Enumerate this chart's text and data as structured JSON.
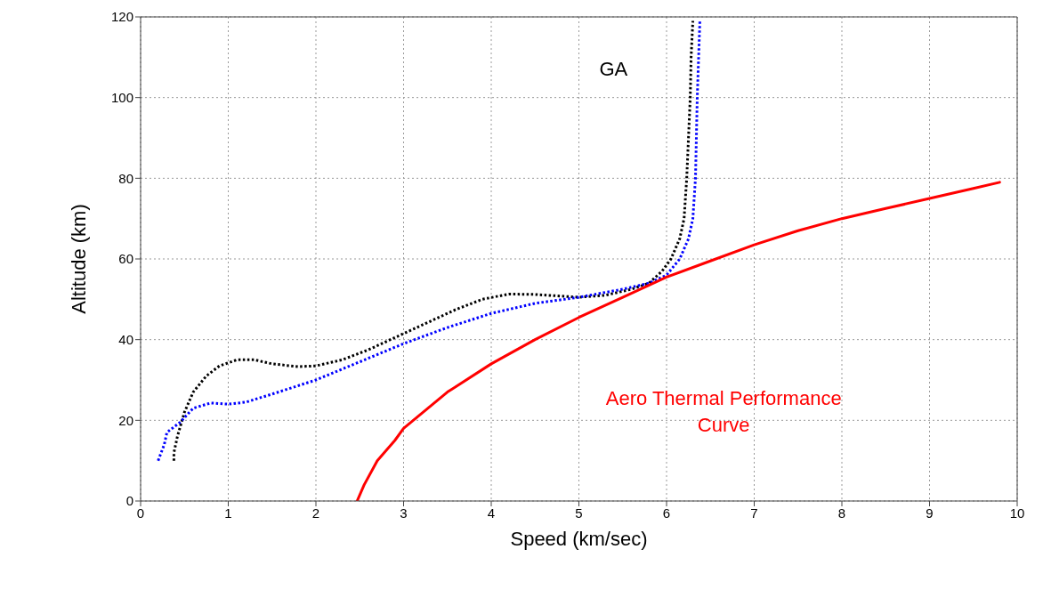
{
  "chart_data": {
    "type": "line",
    "xlabel": "Speed (km/sec)",
    "ylabel": "Altitude (km)",
    "xlim": [
      0,
      10
    ],
    "xticks": [
      0,
      1,
      2,
      3,
      4,
      5,
      6,
      7,
      8,
      9,
      10
    ],
    "ylim": [
      0,
      120
    ],
    "yticks": [
      0,
      20,
      40,
      60,
      80,
      100,
      120
    ],
    "grid": true,
    "legend": false,
    "marker": "none",
    "series": [
      {
        "name": "GA",
        "color": "#000000",
        "line_style": "dotted",
        "x": [
          0.38,
          0.38,
          0.42,
          0.5,
          0.6,
          0.75,
          0.9,
          1.1,
          1.3,
          1.5,
          1.8,
          2.0,
          2.3,
          2.6,
          3.0,
          3.3,
          3.6,
          3.9,
          4.2,
          4.5,
          5.0,
          5.3,
          5.6,
          5.8,
          5.95,
          6.05,
          6.15,
          6.2,
          6.23,
          6.25,
          6.27,
          6.28,
          6.3
        ],
        "values": [
          10,
          12,
          16,
          22,
          27,
          31,
          33.5,
          35,
          35,
          34,
          33.3,
          33.5,
          35,
          37.5,
          41.5,
          44.5,
          47.5,
          50,
          51.3,
          51.2,
          50.5,
          51,
          52.5,
          54,
          57,
          60,
          65,
          70,
          80,
          90,
          100,
          110,
          119
        ]
      },
      {
        "color": "#0000ff",
        "line_style": "dotted",
        "x": [
          0.2,
          0.27,
          0.3,
          0.45,
          0.6,
          0.8,
          1.0,
          1.2,
          1.5,
          2.0,
          2.5,
          3.0,
          3.5,
          4.0,
          4.5,
          5.0,
          5.5,
          5.8,
          6.0,
          6.15,
          6.25,
          6.3,
          6.33,
          6.35,
          6.38
        ],
        "values": [
          10,
          14,
          17,
          19.5,
          23,
          24.3,
          24,
          24.5,
          26.5,
          30,
          34.5,
          39,
          43,
          46.5,
          49,
          50.5,
          52.5,
          54,
          56,
          60,
          65,
          70,
          80,
          100,
          119
        ]
      },
      {
        "name": "Aero Thermal Performance Curve",
        "color": "#ff0000",
        "line_style": "solid",
        "x": [
          2.47,
          2.55,
          2.7,
          2.9,
          3.0,
          3.5,
          4.0,
          4.5,
          5.0,
          5.5,
          6.0,
          6.5,
          7.0,
          7.5,
          8.0,
          8.5,
          9.0,
          9.5,
          9.8
        ],
        "values": [
          0,
          4,
          10,
          15,
          18,
          27,
          34,
          40,
          45.5,
          50.5,
          55.5,
          59.5,
          63.5,
          67,
          70,
          72.5,
          75,
          77.5,
          79
        ]
      }
    ]
  }
}
